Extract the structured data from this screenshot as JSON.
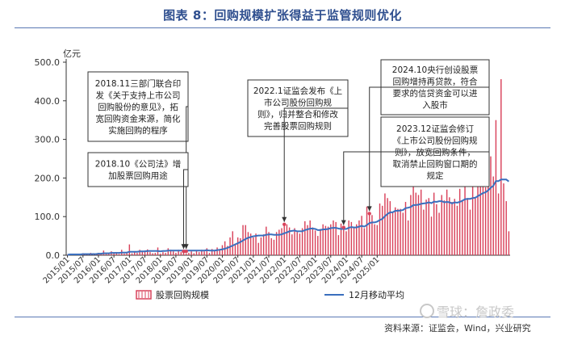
{
  "page": {
    "title": "图表 8：回购规模扩张得益于监管规则优化",
    "source": "资料来源：证监会，Wind，兴业研究",
    "watermark": "雪球：詹政委"
  },
  "chart_data": {
    "type": "bar",
    "y_unit": "亿元",
    "ylim": [
      0,
      500
    ],
    "y_ticks": [
      "0.0",
      "100.0",
      "200.0",
      "300.0",
      "400.0",
      "500.0"
    ],
    "x_tick_labels": [
      "2015/01",
      "2015/07",
      "2016/01",
      "2016/07",
      "2017/01",
      "2017/07",
      "2018/01",
      "2018/07",
      "2019/01",
      "2019/07",
      "2020/01",
      "2020/07",
      "2021/01",
      "2021/07",
      "2022/01",
      "2022/07",
      "2023/01",
      "2023/07",
      "2024/01",
      "2024/07",
      "2025/01"
    ],
    "start_month": "2015/01",
    "series": [
      {
        "name": "股票回购规模",
        "type": "bar",
        "color": "#d9425b",
        "values": [
          1,
          2,
          1,
          1,
          2,
          3,
          5,
          4,
          3,
          6,
          5,
          2,
          6,
          5,
          12,
          3,
          6,
          10,
          5,
          8,
          3,
          14,
          4,
          6,
          28,
          5,
          8,
          6,
          14,
          10,
          12,
          15,
          8,
          5,
          6,
          20,
          4,
          8,
          6,
          18,
          14,
          10,
          6,
          14,
          8,
          10,
          4,
          6,
          10,
          5,
          12,
          8,
          14,
          10,
          18,
          6,
          16,
          12,
          20,
          14,
          26,
          36,
          24,
          46,
          62,
          30,
          46,
          44,
          78,
          78,
          60,
          56,
          46,
          56,
          32,
          46,
          54,
          74,
          60,
          44,
          40,
          60,
          66,
          70,
          82,
          80,
          72,
          54,
          70,
          60,
          56,
          70,
          88,
          78,
          90,
          72,
          64,
          50,
          68,
          80,
          76,
          74,
          80,
          90,
          86,
          52,
          82,
          74,
          62,
          90,
          86,
          70,
          80,
          90,
          102,
          70,
          126,
          110,
          104,
          80,
          78,
          134,
          128,
          160,
          148,
          140,
          110,
          124,
          120,
          120,
          110,
          138,
          90,
          156,
          180,
          162,
          156,
          170,
          118,
          144,
          148,
          100,
          162,
          132,
          110,
          156,
          142,
          170,
          150,
          138,
          146,
          128,
          172,
          140,
          210,
          148,
          118,
          178,
          148,
          216,
          198,
          180,
          176,
          194,
          256,
          204,
          350,
          160,
          456,
          186,
          140,
          62
        ]
      },
      {
        "name": "12月移动平均",
        "type": "line",
        "color": "#3a6fbe",
        "values": [
          1,
          2,
          2,
          2,
          2,
          2,
          3,
          3,
          3,
          3,
          3,
          3,
          4,
          4,
          5,
          5,
          5,
          6,
          6,
          6,
          6,
          7,
          7,
          7,
          9,
          9,
          9,
          9,
          10,
          10,
          10,
          11,
          11,
          11,
          11,
          11,
          10,
          11,
          11,
          12,
          12,
          12,
          12,
          12,
          12,
          12,
          12,
          12,
          12,
          12,
          12,
          12,
          12,
          12,
          13,
          12,
          12,
          12,
          13,
          14,
          15,
          17,
          19,
          22,
          25,
          28,
          31,
          34,
          38,
          42,
          45,
          47,
          49,
          50,
          51,
          51,
          51,
          53,
          54,
          54,
          53,
          53,
          53,
          54,
          57,
          59,
          62,
          63,
          64,
          62,
          62,
          62,
          65,
          67,
          69,
          69,
          68,
          65,
          65,
          67,
          67,
          68,
          70,
          71,
          71,
          69,
          68,
          68,
          68,
          71,
          73,
          72,
          72,
          74,
          76,
          74,
          78,
          83,
          85,
          85,
          87,
          91,
          94,
          101,
          107,
          111,
          111,
          115,
          115,
          116,
          117,
          122,
          123,
          125,
          130,
          130,
          131,
          133,
          134,
          135,
          137,
          135,
          139,
          138,
          140,
          140,
          137,
          138,
          137,
          134,
          137,
          136,
          138,
          141,
          145,
          146,
          146,
          148,
          149,
          153,
          157,
          161,
          163,
          168,
          175,
          180,
          192,
          192,
          196,
          196,
          196,
          191
        ]
      }
    ],
    "annotations": [
      {
        "id": "2018-11",
        "lines": [
          "2018.11三部门联合印",
          "发《关于支持上市公司",
          "回购股份的意见》，拓",
          "宽回购资金来源，简化",
          "实施回购的程序"
        ]
      },
      {
        "id": "2018-10",
        "lines": [
          "2018.10《公司法》增",
          "加股票回购用途"
        ]
      },
      {
        "id": "2022-1",
        "lines": [
          "2022.1证监会发布《上",
          "市公司股份回购规",
          "则》，归并整合和修改",
          "完善股票回购规则"
        ]
      },
      {
        "id": "2024-10",
        "lines": [
          "2024.10央行创设股票",
          "回购增持再贷款，符合",
          "要求的信贷资金可以进",
          "入股市"
        ]
      },
      {
        "id": "2023-12",
        "lines": [
          "2023.12证监会修订",
          "《上市公司股份回购规",
          "则》，放宽回购条件，",
          "取消禁止回购窗口期的",
          "规定"
        ]
      }
    ],
    "legend_position": "bottom",
    "grid": false
  }
}
